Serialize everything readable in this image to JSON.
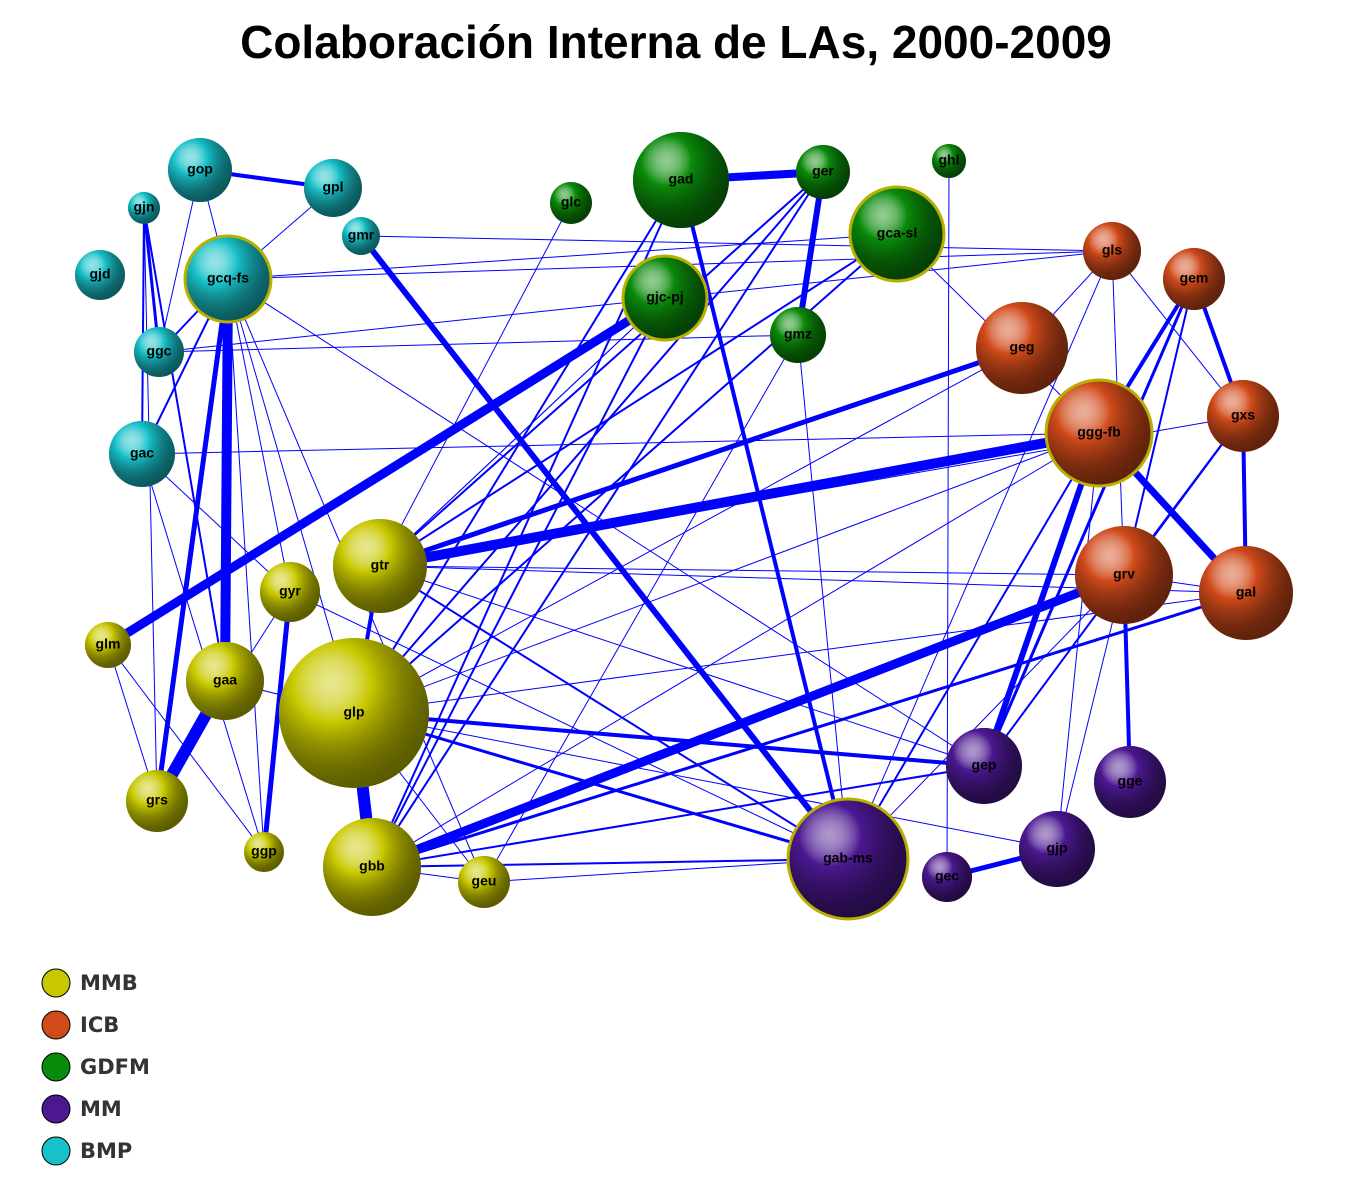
{
  "title": "Colaboración Interna de LAs, 2000-2009",
  "nodes": [
    {
      "label": "gop"
    },
    {
      "label": "gpl"
    },
    {
      "label": "gjn"
    },
    {
      "label": "gmr"
    },
    {
      "label": "gjd"
    },
    {
      "label": "gcq-fs"
    },
    {
      "label": "ggc"
    },
    {
      "label": "gac"
    },
    {
      "label": "glc"
    },
    {
      "label": "gad"
    },
    {
      "label": "ger"
    },
    {
      "label": "ghl"
    },
    {
      "label": "gca-sl"
    },
    {
      "label": "gjc-pj"
    },
    {
      "label": "gmz"
    },
    {
      "label": "gls"
    },
    {
      "label": "gem"
    },
    {
      "label": "geg"
    },
    {
      "label": "ggg-fb"
    },
    {
      "label": "gxs"
    },
    {
      "label": "grv"
    },
    {
      "label": "gal"
    },
    {
      "label": "gtr"
    },
    {
      "label": "gyr"
    },
    {
      "label": "glm"
    },
    {
      "label": "gaa"
    },
    {
      "label": "glp"
    },
    {
      "label": "grs"
    },
    {
      "label": "ggp"
    },
    {
      "label": "gbb"
    },
    {
      "label": "geu"
    },
    {
      "label": "gep"
    },
    {
      "label": "gge"
    },
    {
      "label": "gjp"
    },
    {
      "label": "gab-ms"
    },
    {
      "label": "gec"
    }
  ],
  "legend": [
    {
      "label": "MMB",
      "color": "#c8c800"
    },
    {
      "label": "ICB",
      "color": "#d04a1a"
    },
    {
      "label": "GDFM",
      "color": "#0a8a0a"
    },
    {
      "label": "MM",
      "color": "#4b1890"
    },
    {
      "label": "BMP",
      "color": "#18c0c8"
    }
  ]
}
